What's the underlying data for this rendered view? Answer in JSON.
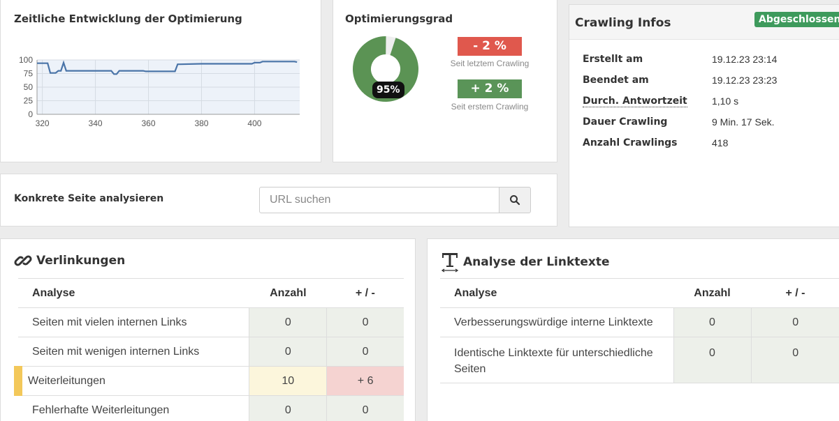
{
  "chart_card": {
    "title": "Zeitliche Entwicklung der Optimierung"
  },
  "chart_data": {
    "type": "line",
    "x": [
      318,
      322,
      323,
      325,
      326,
      327,
      328,
      329,
      330,
      340,
      346,
      347,
      348,
      349,
      350,
      358,
      359,
      360,
      370,
      371,
      372,
      380,
      384,
      390,
      398,
      399,
      400,
      402,
      403,
      405,
      410,
      415,
      416
    ],
    "y": [
      94,
      94,
      76,
      76,
      80,
      80,
      95,
      80,
      80,
      80,
      80,
      74,
      74,
      80,
      80,
      80,
      79,
      79,
      79,
      92,
      92,
      93,
      93,
      93,
      93,
      93,
      95,
      95,
      97,
      97,
      97,
      97,
      96
    ],
    "xticks": [
      "320",
      "340",
      "360",
      "380",
      "400"
    ],
    "yticks": [
      "100",
      "75",
      "50",
      "25",
      "0"
    ],
    "xlim": [
      318,
      417
    ],
    "ylim": [
      0,
      100
    ],
    "grid": true,
    "title": "",
    "xlabel": "",
    "ylabel": "",
    "line_color": "#4a74a8",
    "fill_color": "#edf2f9"
  },
  "opt_card": {
    "title": "Optimierungsgrad",
    "percent_label": "95%",
    "percent_value": 95,
    "delta_last": "- 2 %",
    "delta_last_caption": "Seit letztem Crawling",
    "delta_first": "+ 2 %",
    "delta_first_caption": "Seit erstem Crawling",
    "colors": {
      "donut": "#5b9354",
      "negative": "#e0584d",
      "positive": "#5a9458"
    }
  },
  "info_card": {
    "title": "Crawling Infos",
    "status": "Abgeschlossen",
    "rows": [
      {
        "key": "Erstellt am",
        "value": "19.12.23 23:14"
      },
      {
        "key": "Beendet am",
        "value": "19.12.23 23:23"
      },
      {
        "key": "Durch. Antwortzeit",
        "value": "1,10 s"
      },
      {
        "key": "Dauer Crawling",
        "value": "9 Min. 17 Sek."
      },
      {
        "key": "Anzahl Crawlings",
        "value": "418"
      }
    ]
  },
  "search_card": {
    "label": "Konkrete Seite analysieren",
    "placeholder": "URL suchen",
    "button_icon": "search-icon"
  },
  "links_card": {
    "title": "Verlinkungen",
    "icon": "link-icon",
    "columns": [
      "Analyse",
      "Anzahl",
      "+ / -"
    ],
    "rows": [
      {
        "label": "Seiten mit vielen internen Links",
        "count": "0",
        "delta": "0"
      },
      {
        "label": "Seiten mit wenigen internen Links",
        "count": "0",
        "delta": "0"
      },
      {
        "label": "Weiterleitungen",
        "count": "10",
        "delta": "+ 6"
      },
      {
        "label": "Fehlerhafte Weiterleitungen",
        "count": "0",
        "delta": "0"
      }
    ]
  },
  "texts_card": {
    "title": "Analyse der Linktexte",
    "icon": "text-icon",
    "columns": [
      "Analyse",
      "Anzahl",
      "+ / -"
    ],
    "rows": [
      {
        "label": "Verbesserungswürdige interne Linktexte",
        "count": "0",
        "delta": "0"
      },
      {
        "label": "Identische Linktexte für unterschiedliche Seiten",
        "count": "0",
        "delta": "0"
      }
    ]
  }
}
